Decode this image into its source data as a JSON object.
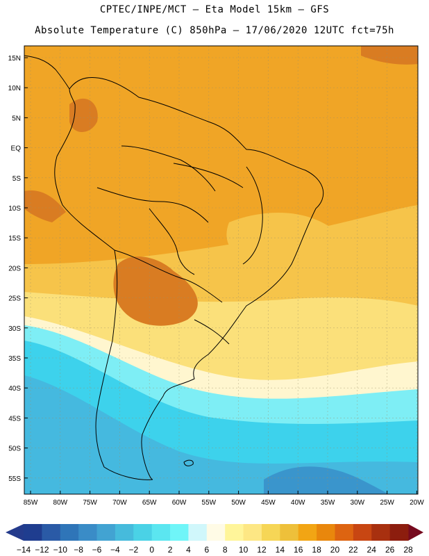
{
  "header": {
    "line1": "CPTEC/INPE/MCT —  Eta Model 15km — GFS",
    "line2": "Absolute Temperature (C) 850hPa — 17/06/2020 12UTC fct=75h"
  },
  "axes": {
    "lat_labels": [
      "15N",
      "10N",
      "5N",
      "EQ",
      "5S",
      "10S",
      "15S",
      "20S",
      "25S",
      "30S",
      "35S",
      "40S",
      "45S",
      "50S",
      "55S"
    ],
    "lon_labels": [
      "85W",
      "80W",
      "75W",
      "70W",
      "65W",
      "60W",
      "55W",
      "50W",
      "45W",
      "40W",
      "35W",
      "30W",
      "25W",
      "20W"
    ]
  },
  "colorbar": {
    "labels": [
      "-14",
      "-12",
      "-10",
      "-8",
      "-6",
      "-4",
      "-2",
      "0",
      "2",
      "4",
      "6",
      "8",
      "10",
      "12",
      "14",
      "16",
      "18",
      "20",
      "22",
      "24",
      "26",
      "28"
    ],
    "colors": [
      "#1f3d8f",
      "#2a5aa6",
      "#2f75b8",
      "#3a8cc7",
      "#42a3d2",
      "#46bbdc",
      "#4ad2e6",
      "#5be6f0",
      "#6ff5f8",
      "#d0f7fb",
      "#fffbe6",
      "#fff59a",
      "#fde784",
      "#f6d656",
      "#eec03a",
      "#f2a514",
      "#e9870c",
      "#dd6411",
      "#c84612",
      "#a8300f",
      "#8c1d0e"
    ],
    "left_arrow": "#243b8c",
    "right_arrow": "#760a1e"
  },
  "palette": {
    "warm_dark": "#d97c22",
    "warm": "#f0a526",
    "warm_light": "#f6c44a",
    "yellow": "#fbe07a",
    "pale": "#fff6cf",
    "cyan_light": "#7eeef5",
    "cyan": "#3dd2ec",
    "blue_light": "#45b9df",
    "blue": "#3a95cc",
    "coast": "#000000"
  }
}
